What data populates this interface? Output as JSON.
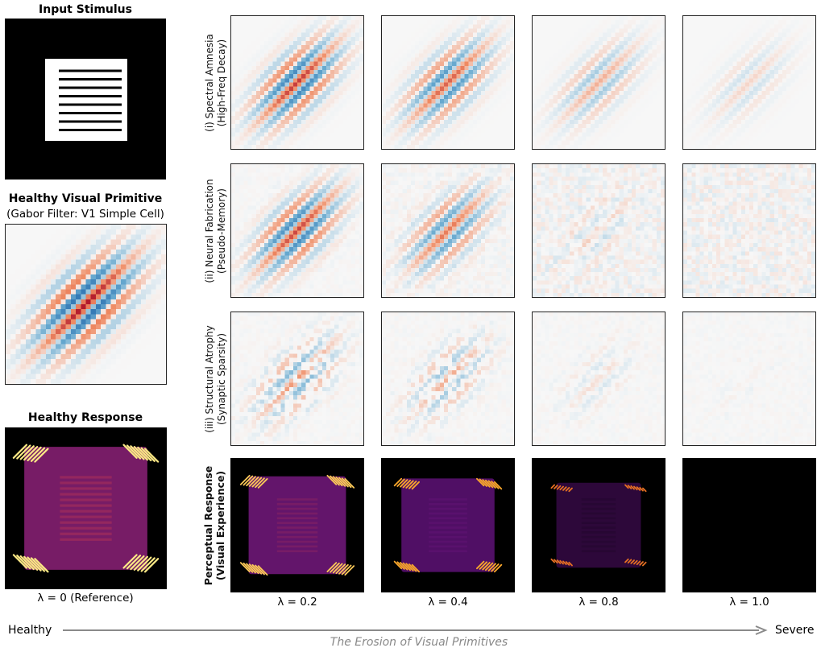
{
  "left": {
    "input_title": "Input Stimulus",
    "primitive_title": "Healthy Visual Primitive",
    "primitive_subtitle": "(Gabor Filter: V1 Simple Cell)",
    "response_title": "Healthy Response",
    "reference_label": "λ = 0 (Reference)"
  },
  "rows": [
    {
      "line1": "(i) Spectral Amnesia",
      "line2": "(High-Freq Decay)",
      "mode": "decay"
    },
    {
      "line1": "(ii) Neural Fabrication",
      "line2": "(Pseudo-Memory)",
      "mode": "fabrication"
    },
    {
      "line1": "(iii) Structural Atrophy",
      "line2": "(Synaptic Sparsity)",
      "mode": "sparsity"
    },
    {
      "line1": "Perceptual Response",
      "line2": "(Visual Experience)",
      "mode": "response"
    }
  ],
  "lambda_labels": [
    "λ = 0.2",
    "λ = 0.4",
    "λ = 0.8",
    "λ = 1.0"
  ],
  "lambda_values": [
    0.2,
    0.4,
    0.8,
    1.0
  ],
  "footer": {
    "left": "Healthy",
    "right": "Severe",
    "caption": "The Erosion of Visual Primitives"
  },
  "colors": {
    "red": "#b2182b",
    "blue": "#2166ac",
    "neutral": "#f7f7f7",
    "arrow": "#8a8a8a"
  }
}
